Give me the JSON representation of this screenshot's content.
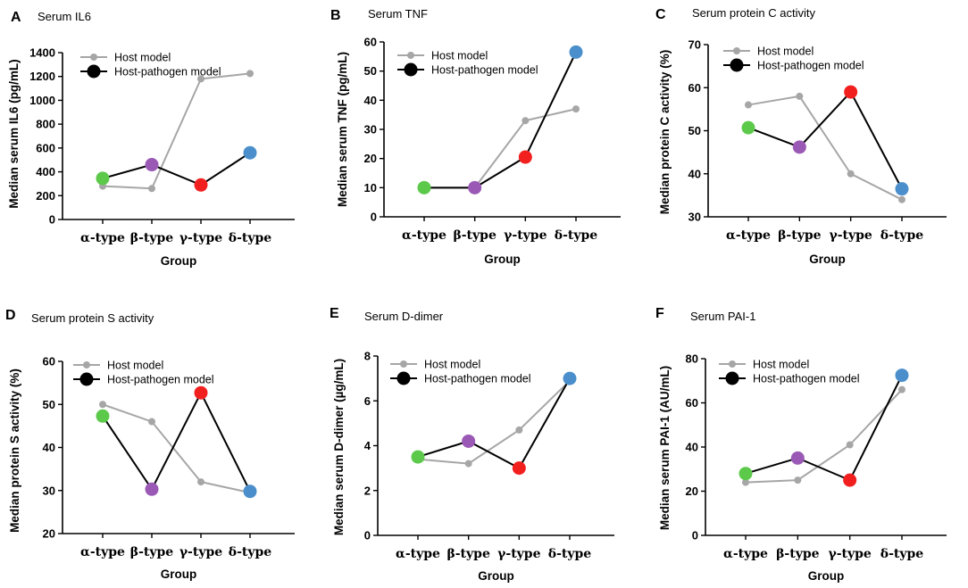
{
  "figure": {
    "colors": {
      "host_line": "#a6a6a6",
      "host_marker": "#a6a6a6",
      "pathogen_line": "#000000",
      "alpha": "#5cc94b",
      "beta": "#9b59b6",
      "gamma": "#f21f1f",
      "delta": "#4a8fcb"
    }
  },
  "chart_data": [
    {
      "letter": "A",
      "type": "line",
      "title": "Serum IL6",
      "xlabel": "Group",
      "ylabel": "Median serum IL6 (pg/mL)",
      "ylim": [
        0,
        1400
      ],
      "yticks": [
        "0",
        "200",
        "400",
        "600",
        "800",
        "1000",
        "1200",
        "1400"
      ],
      "categories": [
        "α-type",
        "β-type",
        "γ-type",
        "δ-type"
      ],
      "series": [
        {
          "name": "Host model",
          "values": [
            280,
            260,
            1180,
            1225
          ]
        },
        {
          "name": "Host-pathogen model",
          "values": [
            345,
            460,
            290,
            560
          ]
        }
      ]
    },
    {
      "letter": "B",
      "type": "line",
      "title": "Serum TNF",
      "xlabel": "Group",
      "ylabel": "Median serum TNF (pg/mL)",
      "ylim": [
        0,
        60
      ],
      "yticks": [
        "0",
        "10",
        "20",
        "30",
        "40",
        "50",
        "60"
      ],
      "categories": [
        "α-type",
        "β-type",
        "γ-type",
        "δ-type"
      ],
      "series": [
        {
          "name": "Host model",
          "values": [
            10,
            10,
            33,
            37
          ]
        },
        {
          "name": "Host-pathogen model",
          "values": [
            10,
            10,
            20.5,
            56.5
          ]
        }
      ]
    },
    {
      "letter": "C",
      "type": "line",
      "title": "Serum protein C activity",
      "xlabel": "Group",
      "ylabel": "Median protein C activity (%)",
      "ylim": [
        30,
        70
      ],
      "yticks": [
        "30",
        "40",
        "50",
        "60",
        "70"
      ],
      "categories": [
        "α-type",
        "β-type",
        "γ-type",
        "δ-type"
      ],
      "series": [
        {
          "name": "Host model",
          "values": [
            56,
            58,
            40,
            34
          ]
        },
        {
          "name": "Host-pathogen model",
          "values": [
            50.7,
            46.2,
            59,
            36.5
          ]
        }
      ]
    },
    {
      "letter": "D",
      "type": "line",
      "title": "Serum protein S activity",
      "xlabel": "Group",
      "ylabel": "Median protein S activity (%)",
      "ylim": [
        20,
        60
      ],
      "yticks": [
        "20",
        "30",
        "40",
        "50",
        "60"
      ],
      "categories": [
        "α-type",
        "β-type",
        "γ-type",
        "δ-type"
      ],
      "series": [
        {
          "name": "Host model",
          "values": [
            50,
            46,
            32,
            29.5
          ]
        },
        {
          "name": "Host-pathogen model",
          "values": [
            47.3,
            30.3,
            52.7,
            29.8
          ]
        }
      ]
    },
    {
      "letter": "E",
      "type": "line",
      "title": "Serum D-dimer",
      "xlabel": "Group",
      "ylabel": "Median serum D-dimer (µg/mL)",
      "ylim": [
        0,
        8
      ],
      "yticks": [
        "0",
        "2",
        "4",
        "6",
        "8"
      ],
      "categories": [
        "α-type",
        "β-type",
        "γ-type",
        "δ-type"
      ],
      "series": [
        {
          "name": "Host model",
          "values": [
            3.4,
            3.2,
            4.7,
            6.9
          ]
        },
        {
          "name": "Host-pathogen model",
          "values": [
            3.5,
            4.2,
            3.0,
            7.0
          ]
        }
      ]
    },
    {
      "letter": "F",
      "type": "line",
      "title": "Serum PAI-1",
      "xlabel": "Group",
      "ylabel": "Median serum PAI-1 (AU/mL)",
      "ylim": [
        0,
        80
      ],
      "yticks": [
        "0",
        "20",
        "40",
        "60",
        "80"
      ],
      "categories": [
        "α-type",
        "β-type",
        "γ-type",
        "δ-type"
      ],
      "series": [
        {
          "name": "Host model",
          "values": [
            24,
            25,
            41,
            66
          ]
        },
        {
          "name": "Host-pathogen model",
          "values": [
            28,
            35,
            25,
            72.5
          ]
        }
      ]
    }
  ]
}
